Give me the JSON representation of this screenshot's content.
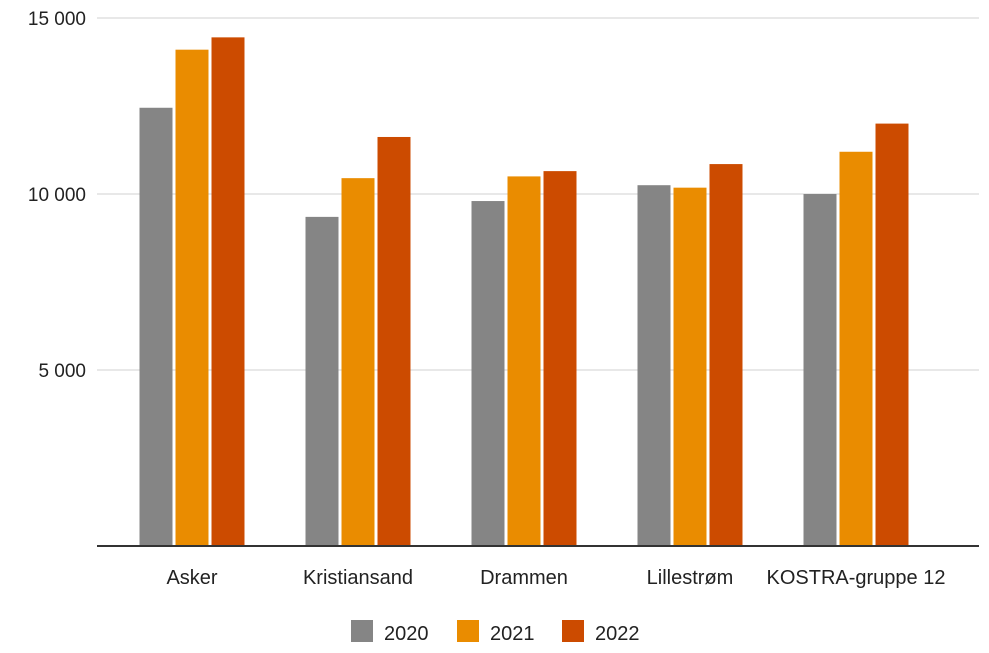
{
  "chart_data": {
    "type": "bar",
    "categories": [
      "Asker",
      "Kristiansand",
      "Drammen",
      "Lillestrøm",
      "KOSTRA-gruppe 12"
    ],
    "series": [
      {
        "name": "2020",
        "color": "#858585",
        "values": [
          12450,
          9350,
          9800,
          10250,
          10000
        ]
      },
      {
        "name": "2021",
        "color": "#ea8c00",
        "values": [
          14100,
          10450,
          10500,
          10180,
          11200
        ]
      },
      {
        "name": "2022",
        "color": "#cc4b00",
        "values": [
          14450,
          11620,
          10650,
          10850,
          12000
        ]
      }
    ],
    "ylim": [
      0,
      15000
    ],
    "y_ticks": [
      {
        "value": 5000,
        "label": "5 000"
      },
      {
        "value": 10000,
        "label": "10 000"
      },
      {
        "value": 15000,
        "label": "15 000"
      }
    ],
    "grid": true,
    "legend_position": "bottom"
  }
}
